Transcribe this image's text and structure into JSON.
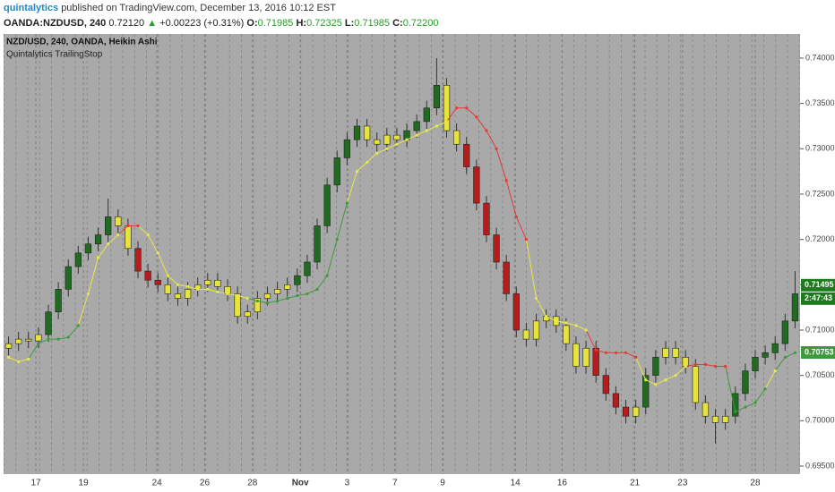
{
  "header": {
    "author": "quintalytics",
    "published": "published on TradingView.com, December 13, 2016 10:12 EST",
    "symbol": "OANDA:NZDUSD, 240",
    "last": "0.72120",
    "arrow": "▲",
    "change": "+0.00223 (+0.31%)",
    "o_label": "O:",
    "open": "0.71985",
    "h_label": "H:",
    "high": "0.72325",
    "l_label": "L:",
    "low": "0.71985",
    "c_label": "C:",
    "close": "0.72200"
  },
  "chart_data": {
    "type": "candlestick",
    "title": "NZD/USD, 240, OANDA, Heikin Ashi",
    "indicator": "Quintalytics TrailingStop",
    "xlim": [
      -0.5,
      79.5
    ],
    "xticks": [
      {
        "value": 2.74,
        "label": "17"
      },
      {
        "value": 7.52,
        "label": "19"
      },
      {
        "value": 14.9,
        "label": "24"
      },
      {
        "value": 19.7,
        "label": "26"
      },
      {
        "value": 24.5,
        "label": "28"
      },
      {
        "value": 29.3,
        "label": "Nov"
      },
      {
        "value": 34.0,
        "label": "3"
      },
      {
        "value": 38.8,
        "label": "7"
      },
      {
        "value": 43.6,
        "label": "9"
      },
      {
        "value": 50.9,
        "label": "14"
      },
      {
        "value": 55.6,
        "label": "16"
      },
      {
        "value": 62.9,
        "label": "21"
      },
      {
        "value": 67.7,
        "label": "23"
      },
      {
        "value": 75.0,
        "label": "28"
      }
    ],
    "ylim": [
      0.69411,
      0.74266
    ],
    "yticks": [
      {
        "value": 0.695,
        "label": "0.69500"
      },
      {
        "value": 0.7,
        "label": "0.70000"
      },
      {
        "value": 0.705,
        "label": "0.70500"
      },
      {
        "value": 0.71,
        "label": "0.71000"
      },
      {
        "value": 0.715,
        "label": "0.71500"
      },
      {
        "value": 0.72,
        "label": "0.72000"
      },
      {
        "value": 0.725,
        "label": "0.72500"
      },
      {
        "value": 0.73,
        "label": "0.73000"
      },
      {
        "value": 0.735,
        "label": "0.73500"
      },
      {
        "value": 0.74,
        "label": "0.74000"
      }
    ],
    "open": [
      0.708,
      0.7085,
      0.709,
      0.7088,
      0.7095,
      0.712,
      0.7145,
      0.717,
      0.7185,
      0.7195,
      0.7205,
      0.7225,
      0.7215,
      0.719,
      0.7165,
      0.7155,
      0.715,
      0.714,
      0.7135,
      0.7145,
      0.715,
      0.7155,
      0.7148,
      0.714,
      0.7115,
      0.712,
      0.7135,
      0.714,
      0.7145,
      0.715,
      0.716,
      0.7175,
      0.7215,
      0.726,
      0.729,
      0.731,
      0.7325,
      0.731,
      0.7305,
      0.7315,
      0.731,
      0.732,
      0.733,
      0.7345,
      0.737,
      0.732,
      0.7305,
      0.728,
      0.724,
      0.7205,
      0.7175,
      0.714,
      0.71,
      0.709,
      0.711,
      0.7115,
      0.7105,
      0.7085,
      0.706,
      0.708,
      0.705,
      0.703,
      0.7015,
      0.7005,
      0.7015,
      0.705,
      0.707,
      0.708,
      0.707,
      0.706,
      0.702,
      0.7005,
      0.6998,
      0.7005,
      0.703,
      0.7055,
      0.707,
      0.7075,
      0.7085,
      0.711
    ],
    "high": [
      0.7093,
      0.7098,
      0.7098,
      0.7103,
      0.7128,
      0.7153,
      0.7178,
      0.7193,
      0.7203,
      0.7213,
      0.7245,
      0.7233,
      0.7223,
      0.7198,
      0.7173,
      0.7163,
      0.7158,
      0.7148,
      0.7153,
      0.7158,
      0.7163,
      0.7163,
      0.7156,
      0.7148,
      0.7128,
      0.7143,
      0.7148,
      0.7153,
      0.7158,
      0.7168,
      0.7183,
      0.7223,
      0.7268,
      0.7298,
      0.7318,
      0.7333,
      0.7333,
      0.7318,
      0.7323,
      0.7323,
      0.7328,
      0.7338,
      0.7353,
      0.74,
      0.7378,
      0.7328,
      0.7313,
      0.7288,
      0.7248,
      0.7213,
      0.7183,
      0.7148,
      0.7108,
      0.7118,
      0.7123,
      0.7123,
      0.7113,
      0.7093,
      0.7088,
      0.7088,
      0.7058,
      0.7038,
      0.7023,
      0.7023,
      0.7058,
      0.7078,
      0.7088,
      0.7088,
      0.7078,
      0.7068,
      0.7028,
      0.7013,
      0.7013,
      0.7038,
      0.7063,
      0.7078,
      0.7083,
      0.7093,
      0.7118,
      0.7165
    ],
    "low": [
      0.7072,
      0.7077,
      0.708,
      0.708,
      0.7087,
      0.7112,
      0.7137,
      0.7162,
      0.7177,
      0.7187,
      0.7197,
      0.7207,
      0.7182,
      0.7157,
      0.7147,
      0.7142,
      0.7132,
      0.7127,
      0.7127,
      0.7137,
      0.7142,
      0.714,
      0.7132,
      0.7107,
      0.7107,
      0.7112,
      0.7127,
      0.7132,
      0.7137,
      0.7142,
      0.7152,
      0.7167,
      0.7207,
      0.7252,
      0.7282,
      0.7302,
      0.7302,
      0.7297,
      0.7297,
      0.7302,
      0.7302,
      0.7312,
      0.7322,
      0.7337,
      0.7312,
      0.7297,
      0.7272,
      0.7232,
      0.7197,
      0.7167,
      0.7132,
      0.7092,
      0.7082,
      0.7082,
      0.7102,
      0.7097,
      0.7077,
      0.7052,
      0.7052,
      0.7042,
      0.7022,
      0.7007,
      0.6997,
      0.6997,
      0.7007,
      0.7042,
      0.7062,
      0.7062,
      0.7052,
      0.7012,
      0.6997,
      0.6975,
      0.699,
      0.6997,
      0.7022,
      0.7047,
      0.7062,
      0.7067,
      0.7077,
      0.7102
    ],
    "close": [
      0.7085,
      0.709,
      0.7088,
      0.7095,
      0.712,
      0.7145,
      0.717,
      0.7185,
      0.7195,
      0.7205,
      0.7225,
      0.7215,
      0.719,
      0.7165,
      0.7155,
      0.715,
      0.714,
      0.7135,
      0.7145,
      0.715,
      0.7155,
      0.7148,
      0.714,
      0.7115,
      0.712,
      0.7135,
      0.714,
      0.7145,
      0.715,
      0.716,
      0.7175,
      0.7215,
      0.726,
      0.729,
      0.731,
      0.7325,
      0.731,
      0.7305,
      0.7315,
      0.731,
      0.732,
      0.733,
      0.7345,
      0.737,
      0.732,
      0.7305,
      0.728,
      0.724,
      0.7205,
      0.7175,
      0.714,
      0.71,
      0.709,
      0.711,
      0.7115,
      0.7105,
      0.7085,
      0.706,
      0.708,
      0.705,
      0.703,
      0.7015,
      0.7005,
      0.7015,
      0.705,
      0.707,
      0.708,
      0.707,
      0.706,
      0.702,
      0.7005,
      0.6998,
      0.7005,
      0.703,
      0.7055,
      0.707,
      0.7075,
      0.7085,
      0.711,
      0.714
    ],
    "candle_colors": [
      "#e6e33a",
      "#e6e33a",
      "#e6e33a",
      "#e6e33a",
      "#1f6b1f",
      "#1f6b1f",
      "#1f6b1f",
      "#1f6b1f",
      "#1f6b1f",
      "#1f6b1f",
      "#1f6b1f",
      "#e6e33a",
      "#e6e33a",
      "#b71c1c",
      "#b71c1c",
      "#b71c1c",
      "#e6e33a",
      "#e6e33a",
      "#e6e33a",
      "#e6e33a",
      "#e6e33a",
      "#e6e33a",
      "#e6e33a",
      "#e6e33a",
      "#e6e33a",
      "#e6e33a",
      "#e6e33a",
      "#e6e33a",
      "#e6e33a",
      "#1f6b1f",
      "#1f6b1f",
      "#1f6b1f",
      "#1f6b1f",
      "#1f6b1f",
      "#1f6b1f",
      "#1f6b1f",
      "#e6e33a",
      "#e6e33a",
      "#e6e33a",
      "#e6e33a",
      "#1f6b1f",
      "#1f6b1f",
      "#1f6b1f",
      "#1f6b1f",
      "#e6e33a",
      "#e6e33a",
      "#b71c1c",
      "#b71c1c",
      "#b71c1c",
      "#b71c1c",
      "#b71c1c",
      "#b71c1c",
      "#e6e33a",
      "#e6e33a",
      "#e6e33a",
      "#e6e33a",
      "#e6e33a",
      "#e6e33a",
      "#e6e33a",
      "#b71c1c",
      "#b71c1c",
      "#b71c1c",
      "#b71c1c",
      "#e6e33a",
      "#1f6b1f",
      "#1f6b1f",
      "#e6e33a",
      "#e6e33a",
      "#e6e33a",
      "#e6e33a",
      "#e6e33a",
      "#e6e33a",
      "#e6e33a",
      "#1f6b1f",
      "#1f6b1f",
      "#1f6b1f",
      "#1f6b1f",
      "#1f6b1f",
      "#1f6b1f",
      "#1f6b1f"
    ],
    "stop": [
      0.707,
      0.7065,
      0.7068,
      0.7085,
      0.709,
      0.709,
      0.7092,
      0.7105,
      0.714,
      0.718,
      0.7195,
      0.7205,
      0.7215,
      0.7215,
      0.7205,
      0.7185,
      0.716,
      0.715,
      0.7148,
      0.7145,
      0.7145,
      0.7142,
      0.714,
      0.7138,
      0.7135,
      0.7132,
      0.713,
      0.7132,
      0.7135,
      0.7138,
      0.714,
      0.7145,
      0.716,
      0.72,
      0.724,
      0.7275,
      0.7285,
      0.7295,
      0.73,
      0.7305,
      0.731,
      0.7315,
      0.732,
      0.7325,
      0.733,
      0.7345,
      0.7345,
      0.7335,
      0.732,
      0.73,
      0.7265,
      0.7225,
      0.72,
      0.7135,
      0.7115,
      0.711,
      0.7108,
      0.7105,
      0.71,
      0.7078,
      0.7075,
      0.7075,
      0.7075,
      0.707,
      0.7045,
      0.704,
      0.7045,
      0.705,
      0.706,
      0.7062,
      0.7062,
      0.706,
      0.706,
      0.701,
      0.7015,
      0.702,
      0.7035,
      0.7055,
      0.707,
      0.7075
    ],
    "stop_colors": [
      "#e8e84a",
      "#e8e84a",
      "#e8e84a",
      "#3c9a3c",
      "#3c9a3c",
      "#3c9a3c",
      "#3c9a3c",
      "#3c9a3c",
      "#e8e84a",
      "#e8e84a",
      "#e8e84a",
      "#e8e84a",
      "#e53935",
      "#e53935",
      "#e8e84a",
      "#e8e84a",
      "#e8e84a",
      "#e8e84a",
      "#e8e84a",
      "#e8e84a",
      "#e8e84a",
      "#e8e84a",
      "#e8e84a",
      "#e8e84a",
      "#e8e84a",
      "#3c9a3c",
      "#3c9a3c",
      "#3c9a3c",
      "#3c9a3c",
      "#3c9a3c",
      "#3c9a3c",
      "#3c9a3c",
      "#3c9a3c",
      "#3c9a3c",
      "#3c9a3c",
      "#e8e84a",
      "#e8e84a",
      "#e8e84a",
      "#e8e84a",
      "#e8e84a",
      "#e8e84a",
      "#e8e84a",
      "#e8e84a",
      "#e8e84a",
      "#e8e84a",
      "#e53935",
      "#e53935",
      "#e53935",
      "#e53935",
      "#e53935",
      "#e53935",
      "#e53935",
      "#e53935",
      "#e8e84a",
      "#e8e84a",
      "#e8e84a",
      "#e8e84a",
      "#e8e84a",
      "#e8e84a",
      "#e53935",
      "#e53935",
      "#e53935",
      "#e53935",
      "#e53935",
      "#e8e84a",
      "#e8e84a",
      "#e8e84a",
      "#e8e84a",
      "#e8e84a",
      "#e53935",
      "#e53935",
      "#e53935",
      "#e53935",
      "#3c9a3c",
      "#3c9a3c",
      "#3c9a3c",
      "#3c9a3c",
      "#e8e84a",
      "#3c9a3c",
      "#3c9a3c"
    ],
    "price_tags": [
      {
        "value": 0.71495,
        "color": "#1f7a1f"
      },
      {
        "value": 0.70753,
        "color": "#3c9a3c"
      }
    ],
    "countdown": "2:47:43"
  }
}
